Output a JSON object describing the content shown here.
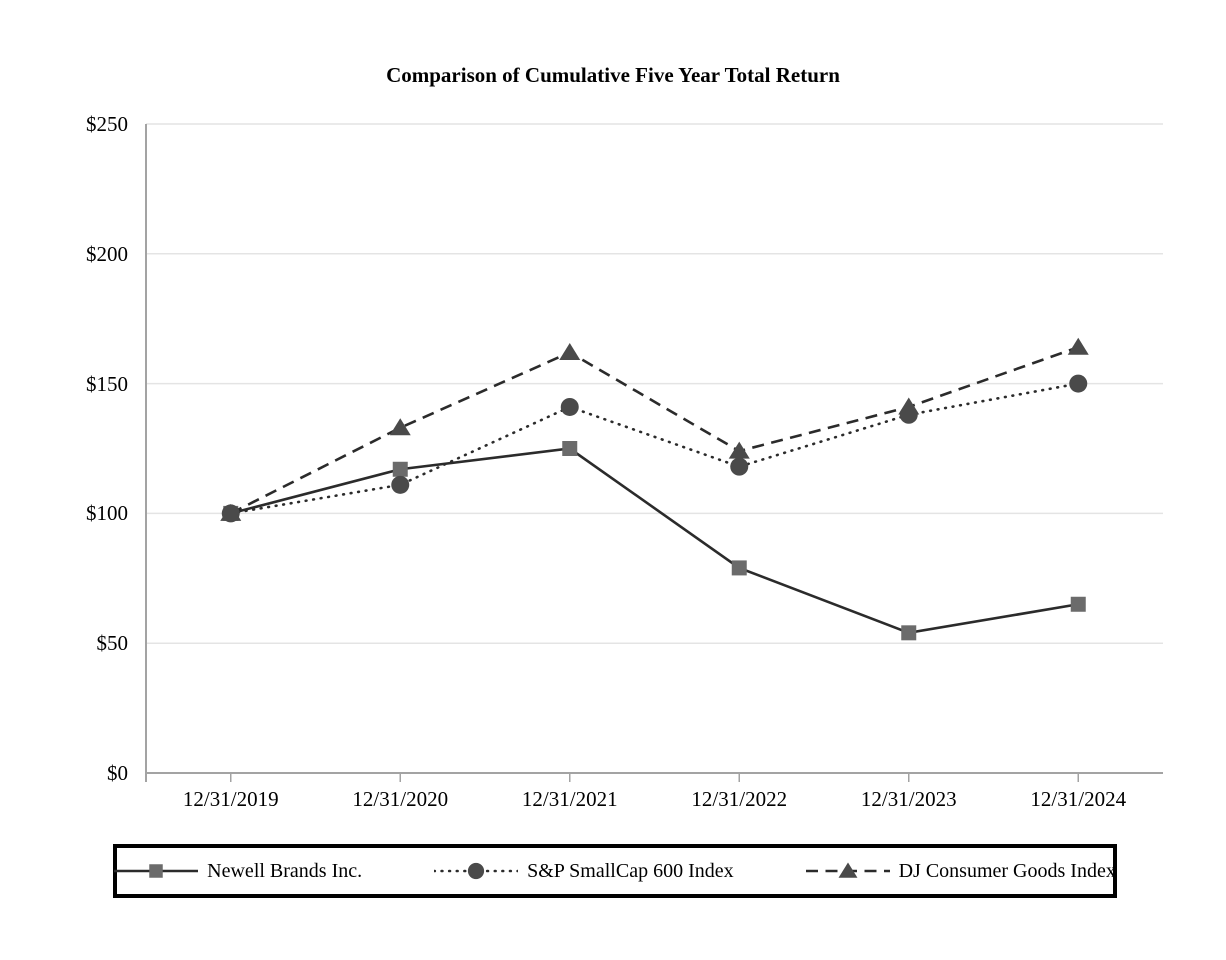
{
  "page": {
    "background": "#ffffff"
  },
  "chart_data": {
    "type": "line",
    "title": "Comparison of Cumulative Five Year Total Return",
    "categories": [
      "12/31/2019",
      "12/31/2020",
      "12/31/2021",
      "12/31/2022",
      "12/31/2023",
      "12/31/2024"
    ],
    "y_tick_labels": [
      "$250",
      "$200",
      "$150",
      "$100",
      "$50",
      "$0"
    ],
    "y_ticks": [
      250,
      200,
      150,
      100,
      50,
      0
    ],
    "ylim": [
      0,
      250
    ],
    "grid": "horizontal",
    "legend_position": "bottom",
    "series": [
      {
        "name": "Newell Brands Inc.",
        "values": [
          100,
          117,
          125,
          79,
          54,
          65
        ],
        "line_style": "solid",
        "marker": "square",
        "line_color": "#2b2b2b",
        "marker_color": "#6b6b6b"
      },
      {
        "name": "S&P SmallCap 600 Index",
        "values": [
          100,
          111,
          141,
          118,
          138,
          150
        ],
        "line_style": "dotted",
        "marker": "circle",
        "line_color": "#2b2b2b",
        "marker_color": "#4a4a4a"
      },
      {
        "name": "DJ Consumer Goods Index",
        "values": [
          100,
          133,
          162,
          124,
          141,
          164
        ],
        "line_style": "dashed",
        "marker": "triangle",
        "line_color": "#2b2b2b",
        "marker_color": "#4a4a4a"
      }
    ],
    "colors": {
      "axis": "#a3a3a3",
      "grid": "#e4e4e4",
      "text": "#000000"
    }
  }
}
